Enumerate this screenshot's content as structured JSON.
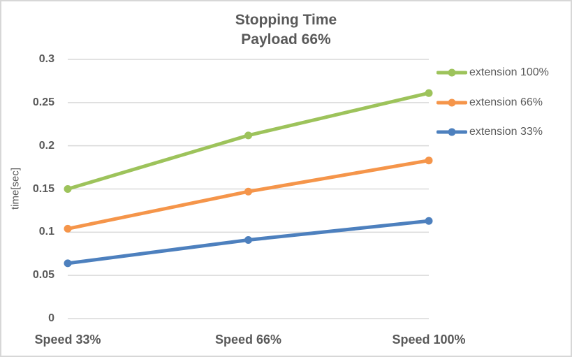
{
  "chart_data": {
    "type": "line",
    "title": "Stopping Time Payload 66%",
    "title_lines": [
      "Stopping Time",
      "Payload 66%"
    ],
    "categories": [
      "Speed 33%",
      "Speed 66%",
      "Speed 100%"
    ],
    "series": [
      {
        "name": "extension 100%",
        "color": "#9DC35B",
        "values": [
          0.15,
          0.212,
          0.261
        ]
      },
      {
        "name": "extension 66%",
        "color": "#F5954A",
        "values": [
          0.104,
          0.147,
          0.183
        ]
      },
      {
        "name": "extension 33%",
        "color": "#4D80BE",
        "values": [
          0.064,
          0.091,
          0.113
        ]
      }
    ],
    "xlabel": "",
    "ylabel": "time[sec]",
    "ylim": [
      0,
      0.3
    ],
    "yticks": [
      {
        "value": 0,
        "label": "0"
      },
      {
        "value": 0.05,
        "label": "0.05"
      },
      {
        "value": 0.1,
        "label": "0.1"
      },
      {
        "value": 0.15,
        "label": "0.15"
      },
      {
        "value": 0.2,
        "label": "0.2"
      },
      {
        "value": 0.25,
        "label": "0.25"
      },
      {
        "value": 0.3,
        "label": "0.3"
      }
    ],
    "grid": true,
    "legend_position": "right",
    "category_axis": "on_tick_marks",
    "marker": "circle"
  },
  "colors": {
    "text": "#595959",
    "grid": "#D9D9D9",
    "border": "#D7D7D7",
    "background": "#FFFFFF"
  }
}
